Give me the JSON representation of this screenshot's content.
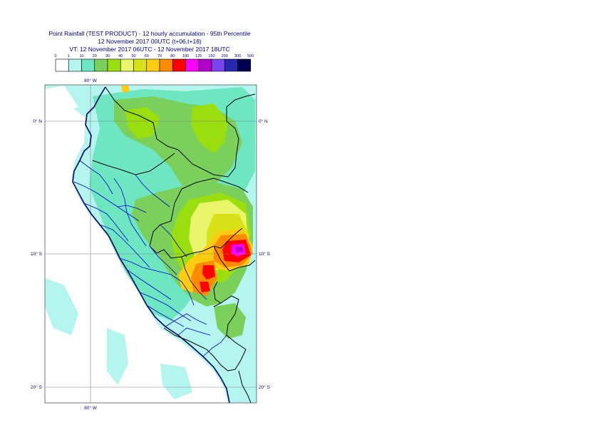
{
  "title": {
    "line1": "Point Rainfall (TEST PRODUCT) - 12 hourly accumulation - 95th Percentile",
    "line2": "12 November 2017 00UTC (t+06,t+18)",
    "line3": "VT: 12 November 2017 06UTC - 12 November 2017 18UTC"
  },
  "legend": {
    "thresholds": [
      "0",
      "1",
      "10",
      "20",
      "30",
      "40",
      "50",
      "60",
      "70",
      "80",
      "100",
      "125",
      "150",
      "200",
      "300",
      "500"
    ],
    "colors": [
      "#ffffff",
      "#b4f5ef",
      "#6ee6c2",
      "#7ad05a",
      "#9ade10",
      "#eaf56c",
      "#d8e218",
      "#ffcc11",
      "#ff8c00",
      "#ff0000",
      "#ff00ff",
      "#b400c8",
      "#7a44ee",
      "#2727b0",
      "#000050"
    ]
  },
  "map": {
    "lon_labels": [
      "80° W",
      "80° W"
    ],
    "lat_labels_left": [
      "0° N",
      "10° S",
      "20° S"
    ],
    "lat_labels_right": [
      "0° N",
      "10° S",
      "20° S"
    ],
    "background_color": "#b4f5ef",
    "coast_color": "#000060",
    "border_color": "#000000",
    "region_color": "#0000d0"
  }
}
